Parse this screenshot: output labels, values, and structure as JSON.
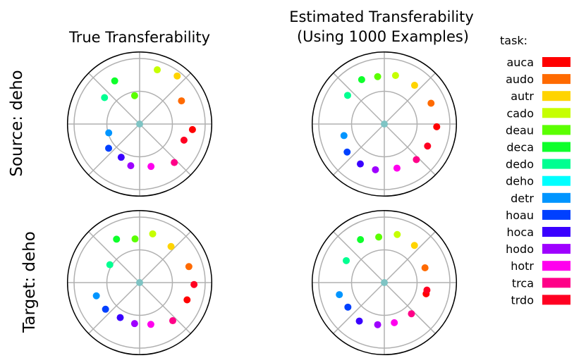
{
  "figure": {
    "column_titles": [
      [
        "True Transferability"
      ],
      [
        "Estimated Transferability",
        "(Using 1000 Examples)"
      ]
    ],
    "row_labels": [
      "Source: deho",
      "Target: deho"
    ]
  },
  "legend": {
    "title": "task:",
    "items": [
      {
        "label": "auca",
        "color": "#ff0000"
      },
      {
        "label": "audo",
        "color": "#ff6a00"
      },
      {
        "label": "autr",
        "color": "#ffd400"
      },
      {
        "label": "cado",
        "color": "#c6ff00"
      },
      {
        "label": "deau",
        "color": "#5bff00"
      },
      {
        "label": "deca",
        "color": "#0eff2b"
      },
      {
        "label": "dedo",
        "color": "#00ff91"
      },
      {
        "label": "deho",
        "color": "#00ffff"
      },
      {
        "label": "detr",
        "color": "#0095ff"
      },
      {
        "label": "hoau",
        "color": "#0040ff"
      },
      {
        "label": "hoca",
        "color": "#3a00ff"
      },
      {
        "label": "hodo",
        "color": "#9e00ff"
      },
      {
        "label": "hotr",
        "color": "#ff00ee"
      },
      {
        "label": "trca",
        "color": "#ff0088"
      },
      {
        "label": "trdo",
        "color": "#ff0022"
      }
    ]
  },
  "chart_data": [
    {
      "type": "scatter",
      "projection": "polar",
      "panel": "Source: deho / True Transferability",
      "center_task": "deho",
      "center_color": "#7fc4c4",
      "grid": true,
      "rlim": [
        0,
        1
      ],
      "radial_gridlines": [
        0.5,
        1.0
      ],
      "points": [
        {
          "task": "auca",
          "angle_deg": -6,
          "r": 0.81
        },
        {
          "task": "audo",
          "angle_deg": 29,
          "r": 0.73
        },
        {
          "task": "autr",
          "angle_deg": 52,
          "r": 0.93
        },
        {
          "task": "cado",
          "angle_deg": 72,
          "r": 0.87
        },
        {
          "task": "deau",
          "angle_deg": 100,
          "r": 0.44
        },
        {
          "task": "deca",
          "angle_deg": 120,
          "r": 0.76
        },
        {
          "task": "dedo",
          "angle_deg": 143,
          "r": 0.67
        },
        {
          "task": "detr",
          "angle_deg": 196,
          "r": 0.49
        },
        {
          "task": "hoau",
          "angle_deg": 218,
          "r": 0.6
        },
        {
          "task": "hoca",
          "angle_deg": 241,
          "r": 0.58
        },
        {
          "task": "hodo",
          "angle_deg": 258,
          "r": 0.65
        },
        {
          "task": "hotr",
          "angle_deg": 285,
          "r": 0.67
        },
        {
          "task": "trca",
          "angle_deg": 312,
          "r": 0.79
        },
        {
          "task": "trdo",
          "angle_deg": 340,
          "r": 0.72
        }
      ]
    },
    {
      "type": "scatter",
      "projection": "polar",
      "panel": "Source: deho / Estimated Transferability (Using 1000 Examples)",
      "center_task": "deho",
      "center_color": "#7fc4c4",
      "grid": true,
      "rlim": [
        0,
        1
      ],
      "radial_gridlines": [
        0.5,
        1.0
      ],
      "points": [
        {
          "task": "auca",
          "angle_deg": -3,
          "r": 0.8
        },
        {
          "task": "audo",
          "angle_deg": 24,
          "r": 0.78
        },
        {
          "task": "autr",
          "angle_deg": 52,
          "r": 0.75
        },
        {
          "task": "cado",
          "angle_deg": 77,
          "r": 0.76
        },
        {
          "task": "deau",
          "angle_deg": 98,
          "r": 0.73
        },
        {
          "task": "deca",
          "angle_deg": 117,
          "r": 0.76
        },
        {
          "task": "dedo",
          "angle_deg": 142,
          "r": 0.71
        },
        {
          "task": "detr",
          "angle_deg": 196,
          "r": 0.64
        },
        {
          "task": "hoau",
          "angle_deg": 217,
          "r": 0.71
        },
        {
          "task": "hoca",
          "angle_deg": 239,
          "r": 0.71
        },
        {
          "task": "hodo",
          "angle_deg": 259,
          "r": 0.71
        },
        {
          "task": "hotr",
          "angle_deg": 286,
          "r": 0.7
        },
        {
          "task": "trca",
          "angle_deg": 312,
          "r": 0.73
        },
        {
          "task": "trdo",
          "angle_deg": 333,
          "r": 0.74
        }
      ]
    },
    {
      "type": "scatter",
      "projection": "polar",
      "panel": "Target: deho / True Transferability",
      "center_task": "deho",
      "center_color": "#7fc4c4",
      "grid": true,
      "rlim": [
        0,
        1
      ],
      "radial_gridlines": [
        0.5,
        1.0
      ],
      "points": [
        {
          "task": "auca",
          "angle_deg": -20,
          "r": 0.77
        },
        {
          "task": "audo",
          "angle_deg": 18,
          "r": 0.79
        },
        {
          "task": "autr",
          "angle_deg": 49,
          "r": 0.73
        },
        {
          "task": "cado",
          "angle_deg": 75,
          "r": 0.77
        },
        {
          "task": "deau",
          "angle_deg": 96,
          "r": 0.67
        },
        {
          "task": "deca",
          "angle_deg": 118,
          "r": 0.75
        },
        {
          "task": "dedo",
          "angle_deg": 149,
          "r": 0.53
        },
        {
          "task": "detr",
          "angle_deg": 197,
          "r": 0.69
        },
        {
          "task": "hoau",
          "angle_deg": 218,
          "r": 0.66
        },
        {
          "task": "hoca",
          "angle_deg": 241,
          "r": 0.61
        },
        {
          "task": "hodo",
          "angle_deg": 263,
          "r": 0.63
        },
        {
          "task": "hotr",
          "angle_deg": 285,
          "r": 0.66
        },
        {
          "task": "trca",
          "angle_deg": 311,
          "r": 0.77
        },
        {
          "task": "trdo",
          "angle_deg": 358,
          "r": 0.83
        }
      ]
    },
    {
      "type": "scatter",
      "projection": "polar",
      "panel": "Target: deho / Estimated Transferability (Using 1000 Examples)",
      "center_task": "deho",
      "center_color": "#7fc4c4",
      "grid": true,
      "rlim": [
        0,
        1
      ],
      "radial_gridlines": [
        0.5,
        1.0
      ],
      "points": [
        {
          "task": "auca",
          "angle_deg": -15,
          "r": 0.66
        },
        {
          "task": "audo",
          "angle_deg": 20,
          "r": 0.66
        },
        {
          "task": "autr",
          "angle_deg": 51,
          "r": 0.73
        },
        {
          "task": "cado",
          "angle_deg": 75,
          "r": 0.76
        },
        {
          "task": "deau",
          "angle_deg": 97,
          "r": 0.7
        },
        {
          "task": "deca",
          "angle_deg": 119,
          "r": 0.75
        },
        {
          "task": "dedo",
          "angle_deg": 150,
          "r": 0.67
        },
        {
          "task": "detr",
          "angle_deg": 195,
          "r": 0.71
        },
        {
          "task": "hoau",
          "angle_deg": 214,
          "r": 0.67
        },
        {
          "task": "hoca",
          "angle_deg": 237,
          "r": 0.7
        },
        {
          "task": "hodo",
          "angle_deg": 261,
          "r": 0.65
        },
        {
          "task": "hotr",
          "angle_deg": 284,
          "r": 0.63
        },
        {
          "task": "trca",
          "angle_deg": 311,
          "r": 0.63
        },
        {
          "task": "trdo",
          "angle_deg": 350,
          "r": 0.66
        }
      ]
    }
  ]
}
